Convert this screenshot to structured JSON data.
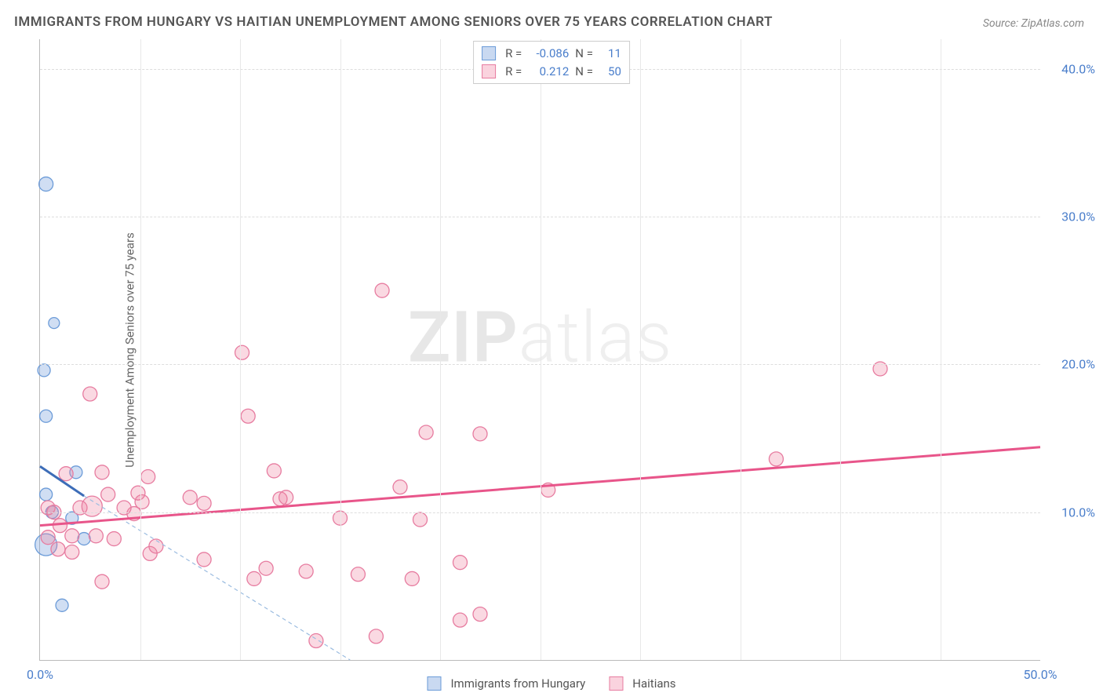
{
  "title": "IMMIGRANTS FROM HUNGARY VS HAITIAN UNEMPLOYMENT AMONG SENIORS OVER 75 YEARS CORRELATION CHART",
  "source": "Source: ZipAtlas.com",
  "watermark_prefix": "ZIP",
  "watermark_suffix": "atlas",
  "y_axis_label": "Unemployment Among Seniors over 75 years",
  "chart": {
    "type": "scatter",
    "xlim": [
      0,
      50
    ],
    "ylim": [
      0,
      42
    ],
    "x_ticks": [
      0,
      50
    ],
    "x_tick_labels": [
      "0.0%",
      "50.0%"
    ],
    "y_ticks": [
      10,
      20,
      30,
      40
    ],
    "y_tick_labels": [
      "10.0%",
      "20.0%",
      "30.0%",
      "40.0%"
    ],
    "v_grid_positions": [
      5,
      10,
      15,
      20,
      25,
      30,
      35,
      40,
      45
    ],
    "background_color": "#ffffff",
    "grid_color": "#dddddd",
    "axis_color": "#bbbbbb",
    "series": [
      {
        "name": "Immigrants from Hungary",
        "color_fill": "rgba(120,160,220,0.35)",
        "color_stroke": "#6b9bd8",
        "marker_radius": 8,
        "R": "-0.086",
        "N": "11",
        "trend": {
          "x1": 0,
          "y1": 13.1,
          "x2": 2.2,
          "y2": 11.1,
          "color": "#3d6db8",
          "width": 3,
          "dash": "none"
        },
        "trend_ext": {
          "x1": 2.2,
          "y1": 11.1,
          "x2": 15.5,
          "y2": 0,
          "color": "#9bbce0",
          "width": 1.2,
          "dash": "5,4"
        },
        "points": [
          {
            "x": 0.3,
            "y": 32.2,
            "r": 9
          },
          {
            "x": 0.2,
            "y": 19.6,
            "r": 8
          },
          {
            "x": 0.3,
            "y": 16.5,
            "r": 8
          },
          {
            "x": 0.7,
            "y": 22.8,
            "r": 7
          },
          {
            "x": 1.8,
            "y": 12.7,
            "r": 8
          },
          {
            "x": 0.6,
            "y": 10.0,
            "r": 8
          },
          {
            "x": 1.6,
            "y": 9.6,
            "r": 8
          },
          {
            "x": 2.2,
            "y": 8.2,
            "r": 8
          },
          {
            "x": 0.3,
            "y": 7.8,
            "r": 14
          },
          {
            "x": 0.3,
            "y": 11.2,
            "r": 8
          },
          {
            "x": 1.1,
            "y": 3.7,
            "r": 8
          }
        ]
      },
      {
        "name": "Haitians",
        "color_fill": "rgba(240,130,160,0.3)",
        "color_stroke": "#e77ca0",
        "marker_radius": 9,
        "R": "0.212",
        "N": "50",
        "trend": {
          "x1": 0,
          "y1": 9.1,
          "x2": 50,
          "y2": 14.4,
          "color": "#e8558a",
          "width": 3,
          "dash": "none"
        },
        "points": [
          {
            "x": 0.4,
            "y": 10.3,
            "r": 9
          },
          {
            "x": 0.7,
            "y": 10.0,
            "r": 9
          },
          {
            "x": 0.4,
            "y": 8.3,
            "r": 9
          },
          {
            "x": 1.0,
            "y": 9.1,
            "r": 9
          },
          {
            "x": 1.3,
            "y": 12.6,
            "r": 9
          },
          {
            "x": 1.6,
            "y": 7.3,
            "r": 9
          },
          {
            "x": 1.6,
            "y": 8.4,
            "r": 9
          },
          {
            "x": 2.0,
            "y": 10.3,
            "r": 9
          },
          {
            "x": 2.6,
            "y": 10.4,
            "r": 13
          },
          {
            "x": 2.5,
            "y": 18.0,
            "r": 9
          },
          {
            "x": 3.1,
            "y": 5.3,
            "r": 9
          },
          {
            "x": 3.1,
            "y": 12.7,
            "r": 9
          },
          {
            "x": 3.4,
            "y": 11.2,
            "r": 9
          },
          {
            "x": 3.7,
            "y": 8.2,
            "r": 9
          },
          {
            "x": 4.7,
            "y": 9.9,
            "r": 9
          },
          {
            "x": 5.1,
            "y": 10.7,
            "r": 9
          },
          {
            "x": 5.4,
            "y": 12.4,
            "r": 9
          },
          {
            "x": 4.9,
            "y": 11.3,
            "r": 9
          },
          {
            "x": 5.5,
            "y": 7.2,
            "r": 9
          },
          {
            "x": 5.8,
            "y": 7.7,
            "r": 9
          },
          {
            "x": 7.5,
            "y": 11.0,
            "r": 9
          },
          {
            "x": 8.2,
            "y": 6.8,
            "r": 9
          },
          {
            "x": 8.2,
            "y": 10.6,
            "r": 9
          },
          {
            "x": 10.1,
            "y": 20.8,
            "r": 9
          },
          {
            "x": 10.4,
            "y": 16.5,
            "r": 9
          },
          {
            "x": 10.7,
            "y": 5.5,
            "r": 9
          },
          {
            "x": 11.3,
            "y": 6.2,
            "r": 9
          },
          {
            "x": 11.7,
            "y": 12.8,
            "r": 9
          },
          {
            "x": 12.0,
            "y": 10.9,
            "r": 9
          },
          {
            "x": 12.3,
            "y": 11.0,
            "r": 9
          },
          {
            "x": 13.8,
            "y": 1.3,
            "r": 9
          },
          {
            "x": 13.3,
            "y": 6.0,
            "r": 9
          },
          {
            "x": 15.0,
            "y": 9.6,
            "r": 9
          },
          {
            "x": 15.9,
            "y": 5.8,
            "r": 9
          },
          {
            "x": 16.8,
            "y": 1.6,
            "r": 9
          },
          {
            "x": 17.1,
            "y": 25.0,
            "r": 9
          },
          {
            "x": 18.0,
            "y": 11.7,
            "r": 9
          },
          {
            "x": 19.3,
            "y": 15.4,
            "r": 9
          },
          {
            "x": 18.6,
            "y": 5.5,
            "r": 9
          },
          {
            "x": 19.0,
            "y": 9.5,
            "r": 9
          },
          {
            "x": 21.0,
            "y": 6.6,
            "r": 9
          },
          {
            "x": 21.0,
            "y": 2.7,
            "r": 9
          },
          {
            "x": 22.0,
            "y": 15.3,
            "r": 9
          },
          {
            "x": 22.0,
            "y": 3.1,
            "r": 9
          },
          {
            "x": 25.4,
            "y": 11.5,
            "r": 9
          },
          {
            "x": 36.8,
            "y": 13.6,
            "r": 9
          },
          {
            "x": 42.0,
            "y": 19.7,
            "r": 9
          },
          {
            "x": 2.8,
            "y": 8.4,
            "r": 9
          },
          {
            "x": 0.9,
            "y": 7.5,
            "r": 9
          },
          {
            "x": 4.2,
            "y": 10.3,
            "r": 9
          }
        ]
      }
    ]
  },
  "stats_legend": {
    "rows": [
      {
        "swatch": "blue",
        "R_label": "R =",
        "R": "-0.086",
        "N_label": "N =",
        "N": "11"
      },
      {
        "swatch": "pink",
        "R_label": "R =",
        "R": "0.212",
        "N_label": "N =",
        "N": "50"
      }
    ]
  },
  "bottom_legend": [
    {
      "swatch": "blue",
      "label": "Immigrants from Hungary"
    },
    {
      "swatch": "pink",
      "label": "Haitians"
    }
  ]
}
